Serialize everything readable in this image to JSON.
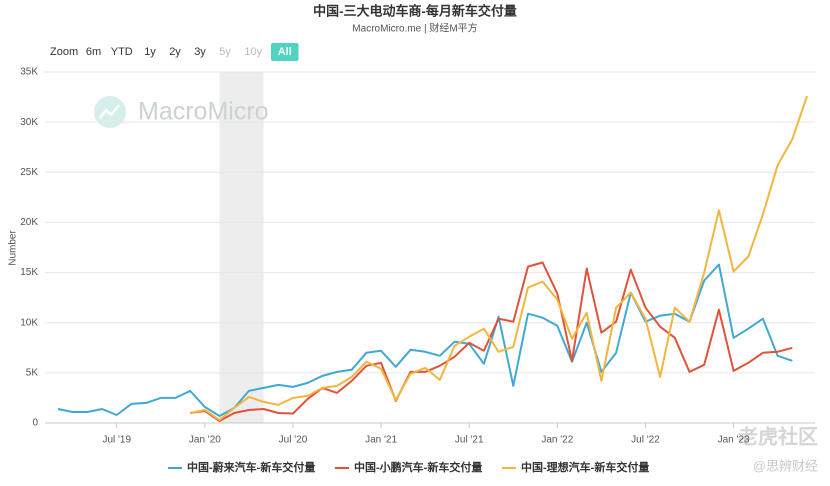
{
  "chart_data": {
    "type": "line",
    "title": "中国-三大电动车商-每月新车交付量",
    "subtitle": "MacroMicro.me | 财经M平方",
    "y_label": "Number",
    "range_selector": {
      "label": "Zoom",
      "buttons": [
        "6m",
        "YTD",
        "1y",
        "2y",
        "3y",
        "5y",
        "10y",
        "All"
      ],
      "selected": 7,
      "disabled": [
        5,
        6
      ]
    },
    "watermarks": [
      "MacroMicro",
      "老虎社区",
      "@思辨财经"
    ],
    "shaded_range": {
      "from": "2020-02",
      "to": "2020-05"
    },
    "grid": true,
    "legend": "bottom",
    "x": [
      "2019-03",
      "2019-04",
      "2019-05",
      "2019-06",
      "2019-07",
      "2019-08",
      "2019-09",
      "2019-10",
      "2019-11",
      "2019-12",
      "2020-01",
      "2020-02",
      "2020-03",
      "2020-04",
      "2020-05",
      "2020-06",
      "2020-07",
      "2020-08",
      "2020-09",
      "2020-10",
      "2020-11",
      "2020-12",
      "2021-01",
      "2021-02",
      "2021-03",
      "2021-04",
      "2021-05",
      "2021-06",
      "2021-07",
      "2021-08",
      "2021-09",
      "2021-10",
      "2021-11",
      "2021-12",
      "2022-01",
      "2022-02",
      "2022-03",
      "2022-04",
      "2022-05",
      "2022-06",
      "2022-07",
      "2022-08",
      "2022-09",
      "2022-10",
      "2022-11",
      "2022-12",
      "2023-01",
      "2023-02",
      "2023-03",
      "2023-04",
      "2023-05",
      "2023-06"
    ],
    "xlim": [
      "2019-03",
      "2023-06"
    ],
    "xticks": [
      {
        "value": "2019-07",
        "label": "Jul '19"
      },
      {
        "value": "2020-01",
        "label": "Jan '20"
      },
      {
        "value": "2020-07",
        "label": "Jul '20"
      },
      {
        "value": "2021-01",
        "label": "Jan '21"
      },
      {
        "value": "2021-07",
        "label": "Jul '21"
      },
      {
        "value": "2022-01",
        "label": "Jan '22"
      },
      {
        "value": "2022-07",
        "label": "Jul '22"
      },
      {
        "value": "2023-01",
        "label": "Jan '23"
      }
    ],
    "ylim": [
      0,
      35000
    ],
    "yticks": [
      0,
      {
        "value": 5000,
        "label": "5K"
      },
      {
        "value": 10000,
        "label": "10K"
      },
      {
        "value": 15000,
        "label": "15K"
      },
      {
        "value": 20000,
        "label": "20K"
      },
      {
        "value": 25000,
        "label": "25K"
      },
      {
        "value": 30000,
        "label": "30K"
      },
      {
        "value": 35000,
        "label": "35K"
      }
    ],
    "series": [
      {
        "name": "中国-蔚来汽车-新车交付量",
        "color": "#3fa9d4",
        "values": [
          1400,
          1100,
          1100,
          1400,
          800,
          1900,
          2000,
          2500,
          2500,
          3200,
          1600,
          700,
          1500,
          3200,
          3500,
          3800,
          3600,
          4000,
          4700,
          5100,
          5300,
          7000,
          7200,
          5600,
          7300,
          7100,
          6700,
          8100,
          7900,
          5900,
          10600,
          3700,
          10900,
          10500,
          9700,
          6100,
          10000,
          5100,
          7000,
          13000,
          10100,
          10700,
          10900,
          10100,
          14200,
          15800,
          8500,
          9400,
          10400,
          6700,
          6200,
          null
        ]
      },
      {
        "name": "中国-小鹏汽车-新车交付量",
        "color": "#e0533a",
        "values": [
          null,
          null,
          null,
          null,
          null,
          null,
          null,
          null,
          null,
          1000,
          1200,
          200,
          1000,
          1300,
          1400,
          1000,
          950,
          2400,
          3500,
          3000,
          4200,
          5700,
          6000,
          2200,
          5100,
          5100,
          5700,
          6600,
          8000,
          7200,
          10400,
          10100,
          15600,
          16000,
          12900,
          6200,
          15400,
          9000,
          10100,
          15300,
          11500,
          9600,
          8500,
          5100,
          5800,
          11300,
          5200,
          6000,
          7000,
          7100,
          7500,
          null
        ]
      },
      {
        "name": "中国-理想汽车-新车交付量",
        "color": "#f2b63f",
        "values": [
          null,
          null,
          null,
          null,
          null,
          null,
          null,
          null,
          null,
          1000,
          1300,
          300,
          1500,
          2600,
          2100,
          1800,
          2500,
          2700,
          3500,
          3700,
          4600,
          6100,
          5400,
          2300,
          4900,
          5500,
          4300,
          7700,
          8600,
          9400,
          7100,
          7600,
          13500,
          14100,
          12300,
          8400,
          11000,
          4200,
          11500,
          13000,
          10400,
          4600,
          11500,
          10100,
          15000,
          21200,
          15100,
          16600,
          20800,
          25700,
          28300,
          32600
        ]
      }
    ]
  }
}
